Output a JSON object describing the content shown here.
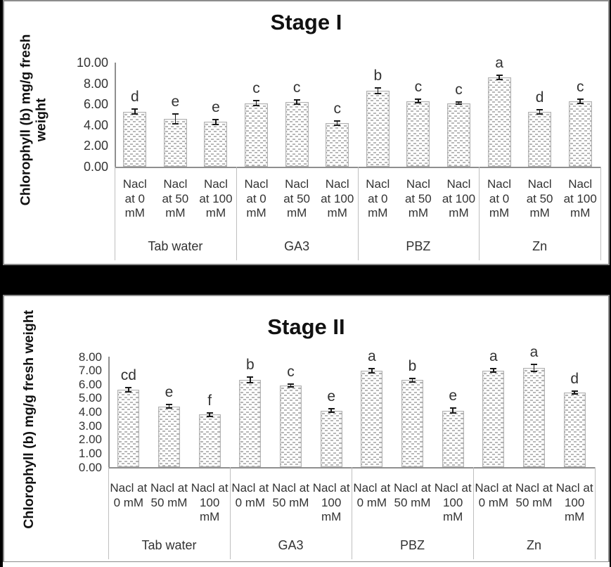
{
  "colors": {
    "page_bg": "#000000",
    "panel_bg": "#ffffff",
    "panel_border": "#8c8c8c",
    "axis_line": "#8f8f8f",
    "separator_line": "#bfbfbf",
    "text": "#333333",
    "title_text": "#111111",
    "error_bar": "#1a1a1a",
    "bar_fill": "#ffffff",
    "bar_pattern": "#b8b8b8",
    "bar_border": "#b0b0b0"
  },
  "chart_data": [
    {
      "type": "bar",
      "title": "Stage I",
      "ylabel": "Chlorophyll (b) mg/g fresh weight",
      "ylabel_lines": [
        "Chlorophyll (b) mg/g fresh",
        "weight"
      ],
      "ylim": [
        0,
        10
      ],
      "ytick_step": 2,
      "yticks": [
        "10.00",
        "8.00",
        "6.00",
        "4.00",
        "2.00",
        "0.00"
      ],
      "legend": "none",
      "grid": "off",
      "groups": [
        {
          "label": "Tab water",
          "bars": [
            {
              "label": "Nacl at 0 mM",
              "label_lines": [
                "Nacl",
                "at 0",
                "mM"
              ],
              "value": 5.3,
              "error": 0.25,
              "letter": "d"
            },
            {
              "label": "Nacl at 50 mM",
              "label_lines": [
                "Nacl",
                "at 50",
                "mM"
              ],
              "value": 4.6,
              "error": 0.45,
              "letter": "e"
            },
            {
              "label": "Nacl at 100 mM",
              "label_lines": [
                "Nacl",
                "at 100",
                "mM"
              ],
              "value": 4.3,
              "error": 0.25,
              "letter": "e"
            }
          ]
        },
        {
          "label": "GA3",
          "bars": [
            {
              "label": "Nacl at 0 mM",
              "label_lines": [
                "Nacl",
                "at 0",
                "mM"
              ],
              "value": 6.1,
              "error": 0.25,
              "letter": "c"
            },
            {
              "label": "Nacl at 50 mM",
              "label_lines": [
                "Nacl",
                "at 50",
                "mM"
              ],
              "value": 6.2,
              "error": 0.2,
              "letter": "c"
            },
            {
              "label": "Nacl at 100 mM",
              "label_lines": [
                "Nacl",
                "at 100",
                "mM"
              ],
              "value": 4.2,
              "error": 0.18,
              "letter": "c"
            }
          ]
        },
        {
          "label": "PBZ",
          "bars": [
            {
              "label": "Nacl at 0 mM",
              "label_lines": [
                "Nacl",
                "at 0",
                "mM"
              ],
              "value": 7.3,
              "error": 0.25,
              "letter": "b"
            },
            {
              "label": "Nacl at 50 mM",
              "label_lines": [
                "Nacl",
                "at 50",
                "mM"
              ],
              "value": 6.3,
              "error": 0.18,
              "letter": "c"
            },
            {
              "label": "Nacl at 100 mM",
              "label_lines": [
                "Nacl",
                "at 100",
                "mM"
              ],
              "value": 6.1,
              "error": 0.12,
              "letter": "c"
            }
          ]
        },
        {
          "label": "Zn",
          "bars": [
            {
              "label": "Nacl at 0 mM",
              "label_lines": [
                "Nacl",
                "at 0",
                "mM"
              ],
              "value": 8.6,
              "error": 0.2,
              "letter": "a"
            },
            {
              "label": "Nacl at 50 mM",
              "label_lines": [
                "Nacl",
                "at 50",
                "mM"
              ],
              "value": 5.3,
              "error": 0.2,
              "letter": "d"
            },
            {
              "label": "Nacl at 100 mM",
              "label_lines": [
                "Nacl",
                "at 100",
                "mM"
              ],
              "value": 6.3,
              "error": 0.2,
              "letter": "c"
            }
          ]
        }
      ]
    },
    {
      "type": "bar",
      "title": "Stage II",
      "ylabel": "Chlorophyll (b) mg/g fresh weight",
      "ylabel_lines": [
        "Chlorophyll (b) mg/g fresh weight"
      ],
      "ylim": [
        0,
        8
      ],
      "ytick_step": 1,
      "yticks": [
        "8.00",
        "7.00",
        "6.00",
        "5.00",
        "4.00",
        "3.00",
        "2.00",
        "1.00",
        "0.00"
      ],
      "legend": "none",
      "grid": "off",
      "groups": [
        {
          "label": "Tab water",
          "bars": [
            {
              "label": "Nacl at 0 mM",
              "label_lines": [
                "Nacl at",
                "0 mM"
              ],
              "value": 5.6,
              "error": 0.15,
              "letter": "cd"
            },
            {
              "label": "Nacl at 50 mM",
              "label_lines": [
                "Nacl at",
                "50 mM"
              ],
              "value": 4.4,
              "error": 0.12,
              "letter": "e"
            },
            {
              "label": "Nacl at 100 mM",
              "label_lines": [
                "Nacl at",
                "100",
                "mM"
              ],
              "value": 3.8,
              "error": 0.12,
              "letter": "f"
            }
          ]
        },
        {
          "label": "GA3",
          "bars": [
            {
              "label": "Nacl at 0 mM",
              "label_lines": [
                "Nacl at",
                "0 mM"
              ],
              "value": 6.3,
              "error": 0.2,
              "letter": "b"
            },
            {
              "label": "Nacl at 50 mM",
              "label_lines": [
                "Nacl at",
                "50 mM"
              ],
              "value": 5.9,
              "error": 0.1,
              "letter": "c"
            },
            {
              "label": "Nacl at 100 mM",
              "label_lines": [
                "Nacl at",
                "100",
                "mM"
              ],
              "value": 4.1,
              "error": 0.15,
              "letter": "e"
            }
          ]
        },
        {
          "label": "PBZ",
          "bars": [
            {
              "label": "Nacl at 0 mM",
              "label_lines": [
                "Nacl at",
                "0 mM"
              ],
              "value": 7.0,
              "error": 0.15,
              "letter": "a"
            },
            {
              "label": "Nacl at 50 mM",
              "label_lines": [
                "Nacl at",
                "50 mM"
              ],
              "value": 6.3,
              "error": 0.12,
              "letter": "b"
            },
            {
              "label": "Nacl at 100 mM",
              "label_lines": [
                "Nacl at",
                "100",
                "mM"
              ],
              "value": 4.1,
              "error": 0.2,
              "letter": "e"
            }
          ]
        },
        {
          "label": "Zn",
          "bars": [
            {
              "label": "Nacl at 0 mM",
              "label_lines": [
                "Nacl at",
                "0 mM"
              ],
              "value": 7.0,
              "error": 0.12,
              "letter": "a"
            },
            {
              "label": "Nacl at 50 mM",
              "label_lines": [
                "Nacl at",
                "50 mM"
              ],
              "value": 7.2,
              "error": 0.25,
              "letter": "a"
            },
            {
              "label": "Nacl at 100 mM",
              "label_lines": [
                "Nacl at",
                "100",
                "mM"
              ],
              "value": 5.4,
              "error": 0.12,
              "letter": "d"
            }
          ]
        }
      ]
    }
  ]
}
